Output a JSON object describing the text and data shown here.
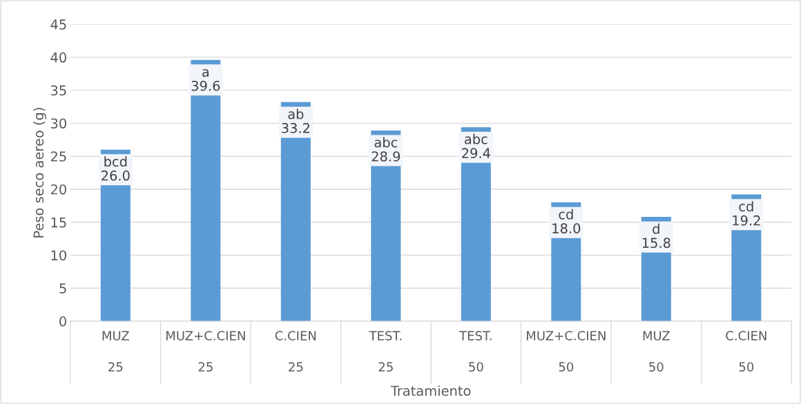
{
  "chart_data": {
    "type": "bar",
    "xlabel": "Tratamiento",
    "ylabel": "Peso seco aereo (g)",
    "categories": [
      "MUZ\n25",
      "MUZ+C.CIEN\n25",
      "C.CIEN\n25",
      "TEST.\n25",
      "TEST.\n50",
      "MUZ+C.CIEN\n50",
      "MUZ\n50",
      "C.CIEN\n50"
    ],
    "values": [
      26.0,
      39.6,
      33.2,
      28.9,
      29.4,
      18.0,
      15.8,
      19.2
    ],
    "value_labels": [
      "bcd\n26.0",
      "a\n39.6",
      "ab\n33.2",
      "abc\n28.9",
      "abc\n29.4",
      "cd\n18.0",
      "d\n15.8",
      "cd\n19.2"
    ],
    "color": "#5b9bd5",
    "ylim": [
      0,
      45
    ],
    "yticks": [
      0,
      5,
      10,
      15,
      20,
      25,
      30,
      35,
      40,
      45
    ],
    "grid": "y"
  }
}
